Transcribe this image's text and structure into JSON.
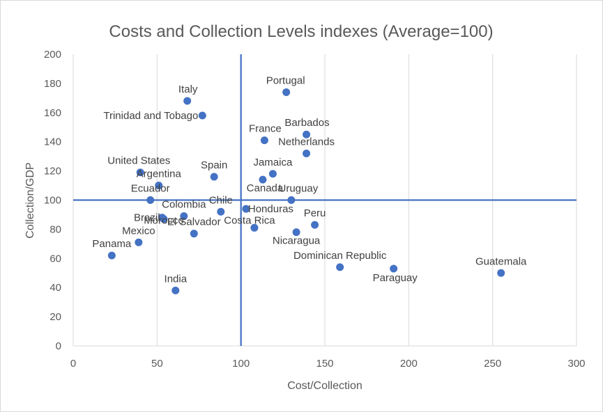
{
  "chart_data": {
    "type": "scatter",
    "title": "Costs and Collection Levels indexes (Average=100)",
    "xlabel": "Cost/Collection",
    "ylabel": "Collection/GDP",
    "xlim": [
      0,
      300
    ],
    "ylim": [
      0,
      200
    ],
    "x_ticks": [
      0,
      50,
      100,
      150,
      200,
      250,
      300
    ],
    "y_ticks": [
      0,
      20,
      40,
      60,
      80,
      100,
      120,
      140,
      160,
      180,
      200
    ],
    "vertical_gridlines": true,
    "horizontal_gridlines": false,
    "reference_lines": {
      "x": 100,
      "y": 100
    },
    "marker_color": "#4472c4",
    "gridline_color": "#d9d9d9",
    "points": [
      {
        "label": "Portugal",
        "x": 127,
        "y": 174
      },
      {
        "label": "Italy",
        "x": 68,
        "y": 168
      },
      {
        "label": "Trinidad and Tobago",
        "x": 77,
        "y": 158
      },
      {
        "label": "Barbados",
        "x": 139,
        "y": 145
      },
      {
        "label": "France",
        "x": 114,
        "y": 141
      },
      {
        "label": "Netherlands",
        "x": 139,
        "y": 132
      },
      {
        "label": "United States",
        "x": 40,
        "y": 119
      },
      {
        "label": "Jamaica",
        "x": 119,
        "y": 118
      },
      {
        "label": "Spain",
        "x": 84,
        "y": 116
      },
      {
        "label": "Canada",
        "x": 113,
        "y": 114
      },
      {
        "label": "Argentina",
        "x": 51,
        "y": 110
      },
      {
        "label": "Ecuador",
        "x": 46,
        "y": 100
      },
      {
        "label": "Uruguay",
        "x": 130,
        "y": 100
      },
      {
        "label": "Honduras",
        "x": 103,
        "y": 94
      },
      {
        "label": "Chile",
        "x": 88,
        "y": 92
      },
      {
        "label": "Colombia",
        "x": 66,
        "y": 89
      },
      {
        "label": "Brazil",
        "x": 53,
        "y": 88
      },
      {
        "label": "Morocco",
        "x": 54,
        "y": 87
      },
      {
        "label": "Peru",
        "x": 144,
        "y": 83
      },
      {
        "label": "Costa Rica",
        "x": 108,
        "y": 81
      },
      {
        "label": "Nicaragua",
        "x": 133,
        "y": 78
      },
      {
        "label": "El Salvador",
        "x": 72,
        "y": 77
      },
      {
        "label": "Mexico",
        "x": 39,
        "y": 71
      },
      {
        "label": "Panama",
        "x": 23,
        "y": 62
      },
      {
        "label": "Dominican Republic",
        "x": 159,
        "y": 54
      },
      {
        "label": "Paraguay",
        "x": 191,
        "y": 53
      },
      {
        "label": "Guatemala",
        "x": 255,
        "y": 50
      },
      {
        "label": "India",
        "x": 61,
        "y": 38
      }
    ]
  }
}
